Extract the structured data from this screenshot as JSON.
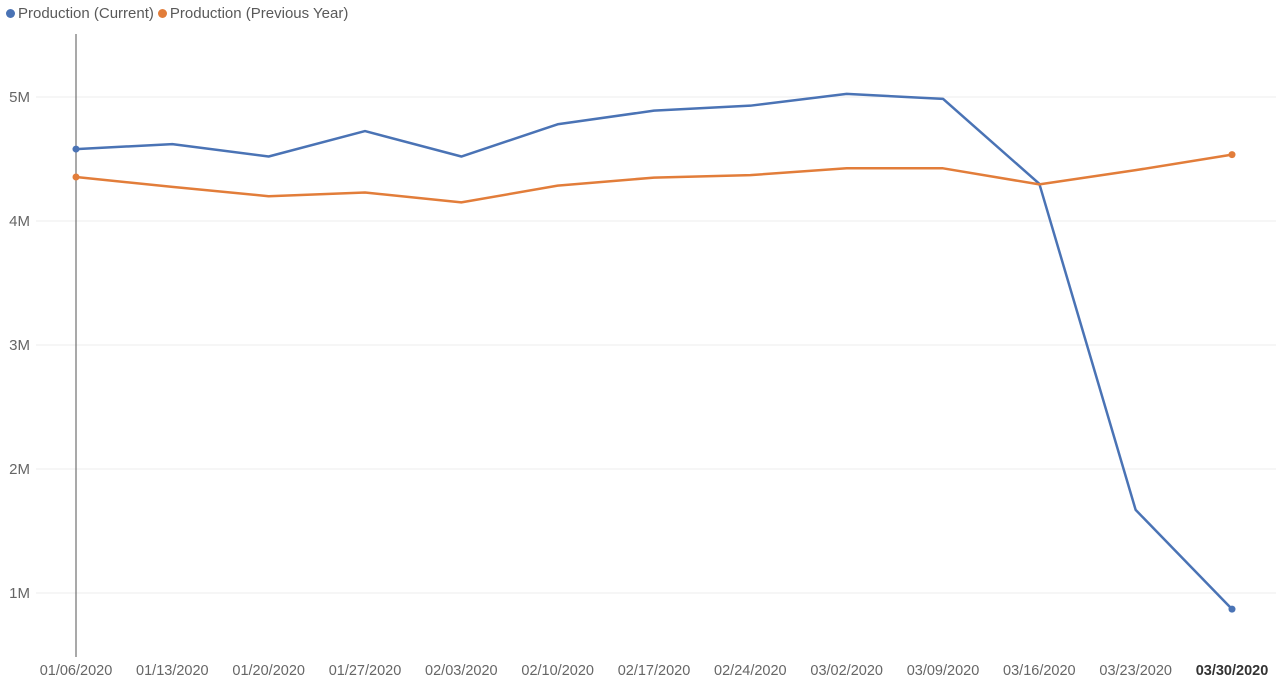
{
  "chart_data": {
    "type": "line",
    "categories": [
      "01/06/2020",
      "01/13/2020",
      "01/20/2020",
      "01/27/2020",
      "02/03/2020",
      "02/10/2020",
      "02/17/2020",
      "02/24/2020",
      "03/02/2020",
      "03/09/2020",
      "03/16/2020",
      "03/23/2020",
      "03/30/2020"
    ],
    "highlighted_category": "03/30/2020",
    "series": [
      {
        "name": "Production (Current)",
        "color": "#4a73b5",
        "values": [
          4580000,
          4620000,
          4520000,
          4725000,
          4520000,
          4780000,
          4890000,
          4930000,
          5025000,
          4985000,
          4300000,
          1670000,
          870000
        ]
      },
      {
        "name": "Production (Previous Year)",
        "color": "#e27d3a",
        "values": [
          4355000,
          4275000,
          4200000,
          4230000,
          4150000,
          4285000,
          4350000,
          4370000,
          4425000,
          4425000,
          4295000,
          4410000,
          4535000
        ]
      }
    ],
    "y_ticks": [
      {
        "value": 1000000,
        "label": "1M"
      },
      {
        "value": 2000000,
        "label": "2M"
      },
      {
        "value": 3000000,
        "label": "3M"
      },
      {
        "value": 4000000,
        "label": "4M"
      },
      {
        "value": 5000000,
        "label": "5M"
      }
    ],
    "ylim": [
      500000,
      5500000
    ],
    "grid": true,
    "legend_position": "top-left",
    "title": "",
    "xlabel": "",
    "ylabel": ""
  }
}
